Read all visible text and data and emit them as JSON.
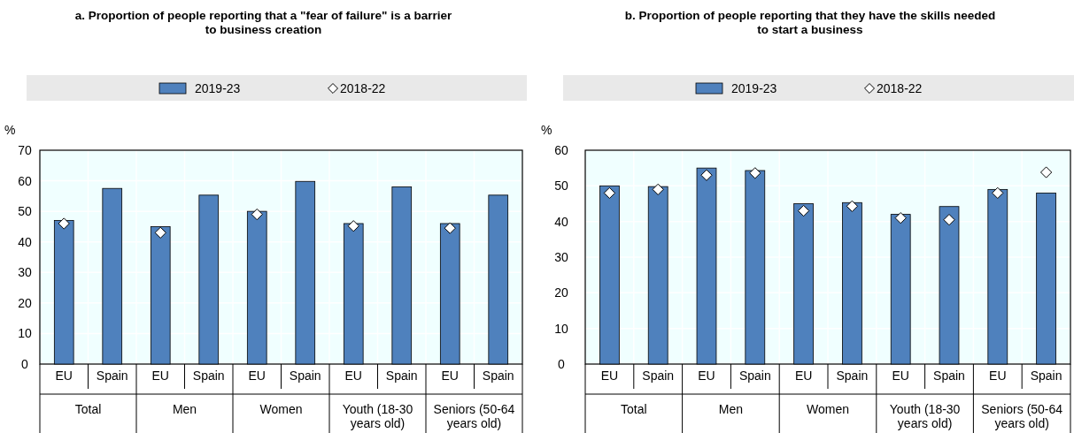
{
  "chart_data": [
    {
      "type": "bar",
      "title": "a. Proportion of people reporting that a \"fear of failure\" is a barrier to business creation",
      "ylabel": "%",
      "categories": [
        "EU",
        "Spain",
        "EU",
        "Spain",
        "EU",
        "Spain",
        "EU",
        "Spain",
        "EU",
        "Spain"
      ],
      "annotations": [
        "Total",
        "Men",
        "Women",
        "Youth (18-30 years old)",
        "Seniors (50-64 years old)"
      ],
      "series": [
        {
          "name": "2019-23",
          "color": "#4f81bd",
          "values": [
            47,
            57.5,
            45,
            55.3,
            50,
            59.8,
            46,
            58,
            46,
            55.3
          ]
        },
        {
          "name": "2018-22",
          "type": "scatter",
          "marker": "diamond",
          "color": "#ffffff",
          "values": [
            46,
            null,
            43,
            null,
            49,
            null,
            45.2,
            null,
            44.5,
            null
          ]
        }
      ],
      "ylim": [
        0,
        70
      ],
      "yticks": [
        0,
        10,
        20,
        30,
        40,
        50,
        60,
        70
      ],
      "grid": true,
      "legend": "top"
    },
    {
      "type": "bar",
      "title": "b. Proportion of people reporting that they have the skills needed to start a business",
      "ylabel": "%",
      "categories": [
        "EU",
        "Spain",
        "EU",
        "Spain",
        "EU",
        "Spain",
        "EU",
        "Spain",
        "EU",
        "Spain"
      ],
      "annotations": [
        "Total",
        "Men",
        "Women",
        "Youth (18-30 years old)",
        "Seniors (50-64 years old)"
      ],
      "series": [
        {
          "name": "2019-23",
          "color": "#4f81bd",
          "values": [
            50,
            49.8,
            55,
            54.3,
            45,
            45.3,
            42,
            44.2,
            49,
            48
          ]
        },
        {
          "name": "2018-22",
          "type": "scatter",
          "marker": "diamond",
          "color": "#ffffff",
          "values": [
            48,
            49,
            53,
            53.6,
            43,
            44.3,
            41,
            40.5,
            48,
            53.8
          ]
        }
      ],
      "ylim": [
        0,
        60
      ],
      "yticks": [
        0,
        10,
        20,
        30,
        40,
        50,
        60
      ],
      "grid": true,
      "legend": "top"
    }
  ]
}
